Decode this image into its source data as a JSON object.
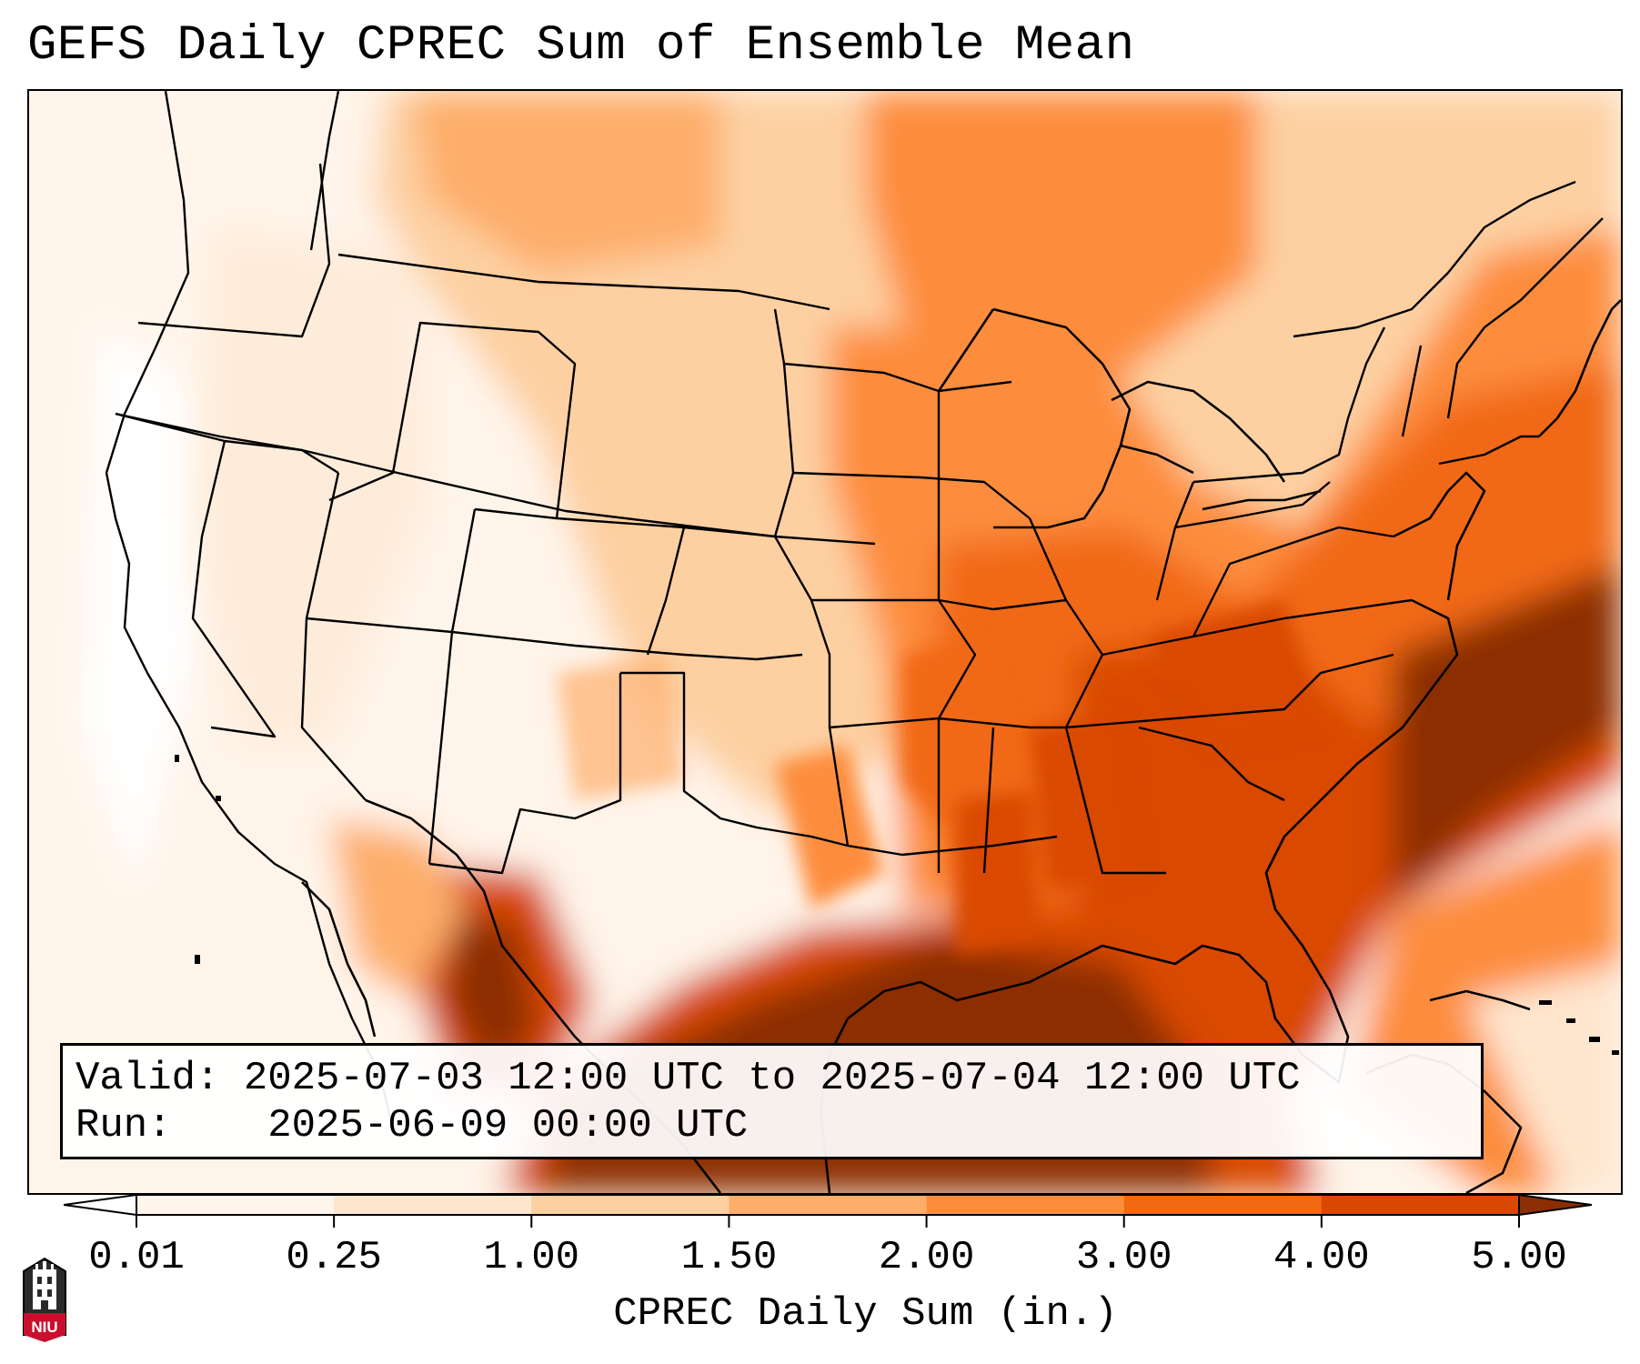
{
  "title": "GEFS Daily CPREC Sum of Ensemble Mean",
  "info": {
    "valid_label": "Valid:",
    "valid_value": "2025-07-03 12:00 UTC to 2025-07-04 12:00 UTC",
    "run_label": "Run:",
    "run_value": "2025-06-09 00:00 UTC"
  },
  "colorbar": {
    "label": "CPREC Daily Sum (in.)",
    "ticks": [
      "0.01",
      "0.25",
      "1.00",
      "1.50",
      "2.00",
      "3.00",
      "4.00",
      "5.00"
    ],
    "colors": [
      "#fff5eb",
      "#fee6ce",
      "#fdd0a2",
      "#fdae6b",
      "#fd8d3c",
      "#f16913",
      "#d94801",
      "#8c2d04"
    ]
  },
  "logo": {
    "text": "NIU",
    "color": "#c8102e"
  }
}
